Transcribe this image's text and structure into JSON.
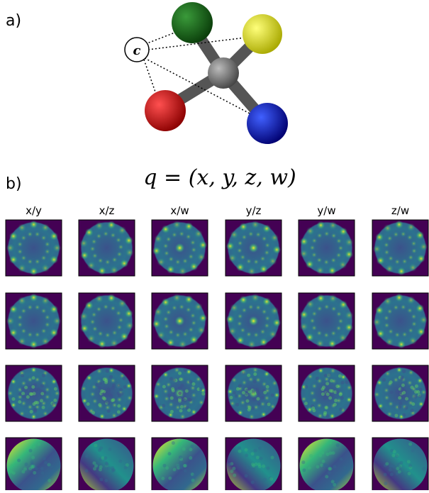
{
  "panel_a": {
    "label": "a)",
    "atom_label": "c"
  },
  "panel_b": {
    "label": "b)",
    "equation": "q = (x, y, z, w)",
    "columns": [
      "x/y",
      "x/z",
      "x/w",
      "y/z",
      "y/w",
      "z/w"
    ]
  }
}
